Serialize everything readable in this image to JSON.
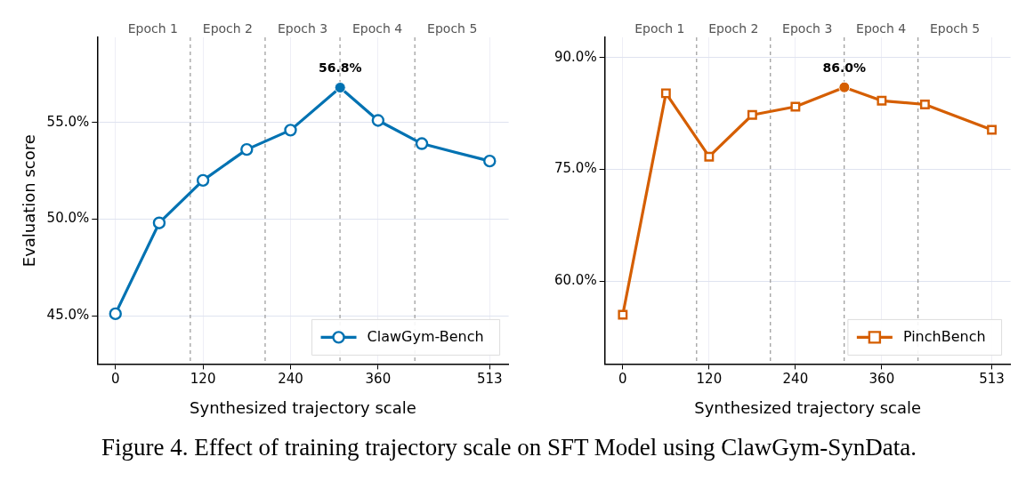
{
  "chart_data": [
    {
      "type": "line",
      "xlabel": "Synthesized trajectory scale",
      "ylabel": "Evaluation score",
      "x": [
        0,
        60,
        120,
        180,
        240,
        308,
        360,
        420,
        513
      ],
      "series": [
        {
          "name": "ClawGym-Bench",
          "color": "#0072b2",
          "marker": "circle",
          "values": [
            45.1,
            49.8,
            52.0,
            53.6,
            54.6,
            56.8,
            55.1,
            53.9,
            53.0
          ]
        }
      ],
      "xlim": [
        -25,
        539
      ],
      "xticks": [
        0,
        120,
        240,
        360,
        513
      ],
      "ylim": [
        42.5,
        59.4
      ],
      "yticks": [
        {
          "value": 45,
          "label": "45.0%"
        },
        {
          "value": 50,
          "label": "50.0%"
        },
        {
          "value": 55,
          "label": "55.0%"
        }
      ],
      "ref_lines": [
        {
          "axis": "x",
          "value": 102.6,
          "color": "#999999",
          "line_style": "dashed"
        },
        {
          "axis": "x",
          "value": 205.2,
          "color": "#999999",
          "line_style": "dashed"
        },
        {
          "axis": "x",
          "value": 307.8,
          "color": "#999999",
          "line_style": "dashed"
        },
        {
          "axis": "x",
          "value": 410.4,
          "color": "#999999",
          "line_style": "dashed"
        }
      ],
      "annotations": [
        {
          "text": "56.8%",
          "x": 308,
          "y": 56.8
        },
        "Epoch 1",
        "Epoch 2",
        "Epoch 3",
        "Epoch 4",
        "Epoch 5"
      ],
      "grid": true,
      "legend": "bottom right",
      "line_style": "solid"
    },
    {
      "type": "line",
      "xlabel": "Synthesized trajectory scale",
      "x": [
        0,
        60,
        120,
        180,
        240,
        308,
        360,
        420,
        513
      ],
      "series": [
        {
          "name": "PinchBench",
          "color": "#d55e00",
          "marker": "square",
          "values": [
            55.5,
            85.2,
            76.7,
            82.3,
            83.4,
            86.0,
            84.2,
            83.7,
            80.3
          ]
        }
      ],
      "xlim": [
        -25,
        539
      ],
      "xticks": [
        0,
        120,
        240,
        360,
        513
      ],
      "ylim": [
        48.9,
        92.7
      ],
      "yticks": [
        {
          "value": 60,
          "label": "60.0%"
        },
        {
          "value": 75,
          "label": "75.0%"
        },
        {
          "value": 90,
          "label": "90.0%"
        }
      ],
      "ref_lines": [
        {
          "axis": "x",
          "value": 102.6,
          "color": "#999999",
          "line_style": "dashed"
        },
        {
          "axis": "x",
          "value": 205.2,
          "color": "#999999",
          "line_style": "dashed"
        },
        {
          "axis": "x",
          "value": 307.8,
          "color": "#999999",
          "line_style": "dashed"
        },
        {
          "axis": "x",
          "value": 410.4,
          "color": "#999999",
          "line_style": "dashed"
        }
      ],
      "annotations": [
        {
          "text": "86.0%",
          "x": 308,
          "y": 86.0
        },
        "Epoch 1",
        "Epoch 2",
        "Epoch 3",
        "Epoch 4",
        "Epoch 5"
      ],
      "grid": true,
      "legend": "bottom right",
      "line_style": "solid"
    },
    {
      "type": "other",
      "annotations": [
        "Figure 4. Effect of training trajectory scale on SFT Model using ClawGym-SynData."
      ]
    }
  ]
}
